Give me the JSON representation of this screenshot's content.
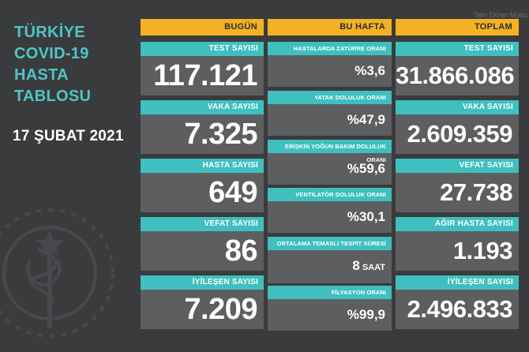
{
  "title": {
    "line1": "TÜRKİYE",
    "line2": "COVID-19",
    "line3": "HASTA",
    "line4": "TABLOSU"
  },
  "date": "17 ŞUBAT 2021",
  "watermark": "Tam Ekran Modu",
  "colors": {
    "background": "#3a3b3d",
    "header": "#f4b123",
    "label": "#3fbfbf",
    "panel": "#5d5e60",
    "title": "#4fc6c6"
  },
  "today": {
    "header": "BUGÜN",
    "cards": [
      {
        "label": "TEST SAYISI",
        "value": "117.121"
      },
      {
        "label": "VAKA SAYISI",
        "value": "7.325"
      },
      {
        "label": "HASTA SAYISI",
        "value": "649"
      },
      {
        "label": "VEFAT SAYISI",
        "value": "86"
      },
      {
        "label": "İYİLEŞEN SAYISI",
        "value": "7.209"
      }
    ]
  },
  "week": {
    "header": "BU HAFTA",
    "cards": [
      {
        "label": "HASTALARDA ZATÜRRE ORANI",
        "value": "%3,6"
      },
      {
        "label": "YATAK DOLULUK ORANI",
        "value": "%47,9"
      },
      {
        "label": "ERİŞKİN YOĞUN BAKIM DOLULUK ORANI",
        "value": "%59,6"
      },
      {
        "label": "VENTİLATÖR DOLULUK ORANI",
        "value": "%30,1"
      },
      {
        "label": "ORTALAMA TEMASLI TESPİT SÜRESİ",
        "value": "8",
        "unit": "SAAT"
      },
      {
        "label": "FİLYASYON ORANI",
        "value": "%99,9"
      }
    ]
  },
  "total": {
    "header": "TOPLAM",
    "cards": [
      {
        "label": "TEST SAYISI",
        "value": "31.866.086"
      },
      {
        "label": "VAKA SAYISI",
        "value": "2.609.359"
      },
      {
        "label": "VEFAT SAYISI",
        "value": "27.738"
      },
      {
        "label": "AĞIR HASTA SAYISI",
        "value": "1.193"
      },
      {
        "label": "İYİLEŞEN SAYISI",
        "value": "2.496.833"
      }
    ]
  }
}
